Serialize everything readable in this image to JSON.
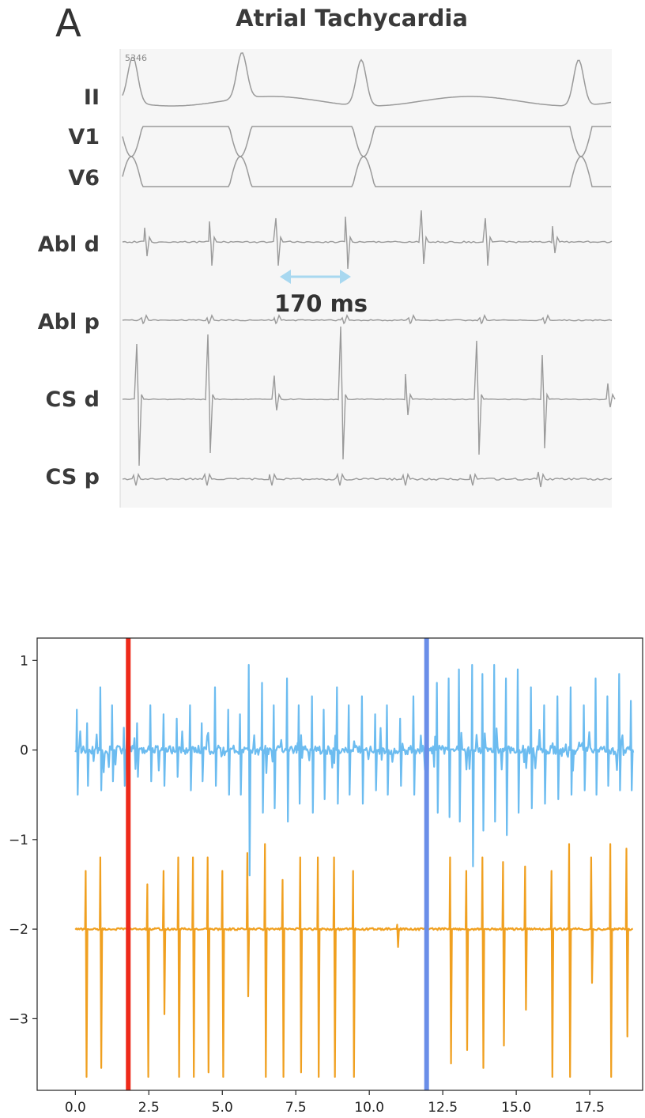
{
  "top_panel": {
    "panel_letter": "A",
    "title": "Atrial Tachycardia",
    "recording_id": "5346",
    "annotation": "170 ms",
    "leads": [
      "II",
      "V1",
      "V6",
      "Abl d",
      "Abl p",
      "CS d",
      "CS p"
    ]
  },
  "colors": {
    "trace_upper": "#6cbcf0",
    "trace_lower": "#f0a020",
    "marker_start": "#ee2a1a",
    "marker_end": "#6a8ee8",
    "annotation_arrow": "#a8d8f0",
    "ecg_trace": "#9a9a9a"
  },
  "chart_data": {
    "type": "line",
    "title": "",
    "xlabel": "",
    "ylabel": "",
    "xlim": [
      -1.3,
      19.3
    ],
    "ylim": [
      -3.8,
      1.25
    ],
    "xticks": [
      "0.0",
      "2.5",
      "5.0",
      "7.5",
      "10.0",
      "12.5",
      "15.0",
      "17.5"
    ],
    "yticks": [
      "1",
      "0",
      "−1",
      "−2",
      "−3"
    ],
    "grid": false,
    "legend": "none",
    "x_range": [
      0.0,
      19.0
    ],
    "series": [
      {
        "baseline": 0.0,
        "spike_times": [
          0.05,
          0.4,
          0.85,
          1.25,
          1.65,
          2.1,
          2.55,
          3.0,
          3.45,
          3.9,
          4.3,
          4.75,
          5.2,
          5.6,
          5.9,
          6.35,
          6.75,
          7.2,
          7.6,
          8.05,
          8.45,
          8.9,
          9.3,
          9.75,
          10.2,
          10.6,
          11.05,
          11.5,
          11.95,
          12.3,
          12.7,
          13.05,
          13.5,
          13.85,
          14.25,
          14.65,
          15.05,
          15.5,
          15.95,
          16.4,
          16.85,
          17.3,
          17.7,
          18.1,
          18.5,
          18.9
        ],
        "spike_peaks": [
          0.45,
          0.3,
          0.7,
          0.5,
          0.25,
          0.3,
          0.5,
          0.4,
          0.35,
          0.5,
          0.3,
          0.7,
          0.45,
          0.4,
          0.95,
          0.75,
          0.5,
          0.8,
          0.5,
          0.6,
          0.45,
          0.7,
          0.5,
          0.6,
          0.4,
          0.5,
          0.35,
          0.6,
          0.45,
          0.75,
          0.8,
          0.9,
          0.95,
          0.85,
          0.95,
          0.8,
          0.9,
          0.7,
          0.5,
          0.6,
          0.7,
          0.5,
          0.8,
          0.6,
          0.85,
          0.55
        ],
        "spike_troughs": [
          -0.5,
          -0.4,
          -0.45,
          -0.35,
          -0.4,
          -0.3,
          -0.35,
          -0.4,
          -0.3,
          -0.45,
          -0.35,
          -0.4,
          -0.5,
          -0.5,
          -1.4,
          -0.7,
          -0.65,
          -0.8,
          -0.6,
          -0.7,
          -0.55,
          -0.6,
          -0.5,
          -0.6,
          -0.45,
          -0.5,
          -0.4,
          -0.5,
          -0.6,
          -0.7,
          -0.75,
          -0.8,
          -1.3,
          -0.9,
          -0.8,
          -0.95,
          -0.7,
          -0.65,
          -0.6,
          -0.55,
          -0.5,
          -0.45,
          -0.5,
          -0.4,
          -0.45,
          -0.45
        ]
      },
      {
        "baseline": -2.0,
        "spike_times": [
          0.35,
          0.85,
          2.45,
          3.0,
          3.5,
          4.0,
          4.5,
          5.0,
          5.85,
          6.45,
          7.05,
          7.65,
          8.25,
          8.8,
          9.45,
          10.95,
          12.75,
          13.3,
          13.85,
          14.55,
          15.3,
          16.2,
          16.8,
          17.55,
          18.2,
          18.75
        ],
        "spike_peaks": [
          -1.35,
          -1.2,
          -1.5,
          -1.35,
          -1.2,
          -1.2,
          -1.2,
          -1.35,
          -1.15,
          -1.05,
          -1.45,
          -1.2,
          -1.2,
          -1.2,
          -1.35,
          -1.95,
          -1.2,
          -1.35,
          -1.2,
          -1.25,
          -1.3,
          -1.35,
          -1.05,
          -1.2,
          -1.05,
          -1.1
        ],
        "spike_troughs": [
          -3.65,
          -3.55,
          -3.65,
          -2.95,
          -3.65,
          -3.65,
          -3.6,
          -3.65,
          -2.75,
          -3.65,
          -3.65,
          -3.6,
          -3.65,
          -3.65,
          -3.65,
          -2.2,
          -3.5,
          -3.35,
          -3.55,
          -3.3,
          -2.9,
          -3.65,
          -3.65,
          -2.6,
          -3.65,
          -3.2
        ]
      }
    ],
    "vertical_markers": [
      {
        "x": 1.8,
        "color": "#ee2a1a"
      },
      {
        "x": 11.95,
        "color": "#6a8ee8"
      }
    ]
  }
}
